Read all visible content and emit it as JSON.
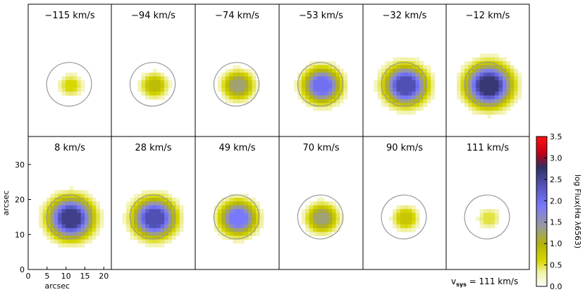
{
  "chart_data": {
    "type": "heatmap",
    "description_grid": "12 channel maps (2 rows x 6 columns), each showing H-alpha flux per velocity channel",
    "panels": [
      {
        "velocity_label": "−115 km/s",
        "velocity": -115,
        "peak_log_flux": 0.6
      },
      {
        "velocity_label": "−94 km/s",
        "velocity": -94,
        "peak_log_flux": 0.9
      },
      {
        "velocity_label": "−74 km/s",
        "velocity": -74,
        "peak_log_flux": 1.3
      },
      {
        "velocity_label": "−53 km/s",
        "velocity": -53,
        "peak_log_flux": 2.0
      },
      {
        "velocity_label": "−32 km/s",
        "velocity": -32,
        "peak_log_flux": 2.4
      },
      {
        "velocity_label": "−12 km/s",
        "velocity": -12,
        "peak_log_flux": 2.7
      },
      {
        "velocity_label": "8 km/s",
        "velocity": 8,
        "peak_log_flux": 2.6
      },
      {
        "velocity_label": "28 km/s",
        "velocity": 28,
        "peak_log_flux": 2.4
      },
      {
        "velocity_label": "49 km/s",
        "velocity": 49,
        "peak_log_flux": 1.9
      },
      {
        "velocity_label": "70 km/s",
        "velocity": 70,
        "peak_log_flux": 1.3
      },
      {
        "velocity_label": "90 km/s",
        "velocity": 90,
        "peak_log_flux": 0.8
      },
      {
        "velocity_label": "111 km/s",
        "velocity": 111,
        "peak_log_flux": 0.5
      }
    ],
    "xlabel": "arcsec",
    "ylabel": "arcsec",
    "x_ticks": [
      "0",
      "5",
      "10",
      "15",
      "20"
    ],
    "y_ticks": [
      "0",
      "10",
      "20",
      "30"
    ],
    "xlim": [
      0,
      22
    ],
    "ylim": [
      0,
      38
    ],
    "colorbar": {
      "label_main": "log Flux(Hα λ6563)",
      "range": [
        0.0,
        3.5
      ],
      "ticks": [
        "0.0",
        "0.5",
        "1.0",
        "1.5",
        "2.0",
        "2.5",
        "3.0",
        "3.5"
      ]
    },
    "systemic_velocity": {
      "label_v": "v",
      "label_sub": "sys",
      "label_rest": " = 111 km/s"
    },
    "colors": {
      "yellow_light": "#f0f0a0",
      "yellow": "#d8d800",
      "olive": "#b4b40a",
      "gray": "#9a9a9a",
      "blue": "#7878ff",
      "darkblue": "#4040a0",
      "navy": "#303060",
      "darkred": "#c00018",
      "red": "#ff1010",
      "contour": "#999999"
    }
  }
}
